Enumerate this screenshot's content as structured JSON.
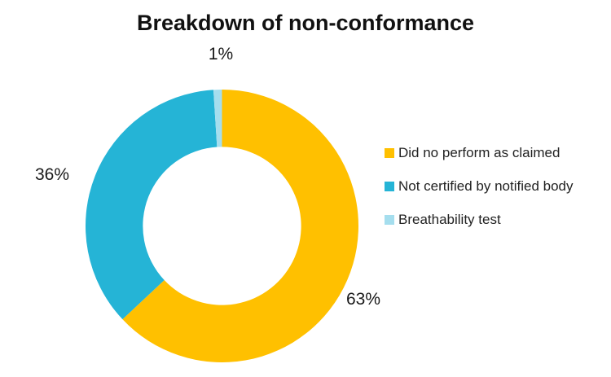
{
  "title": "Breakdown of non-conformance",
  "chart_data": {
    "type": "pie",
    "subtype": "donut",
    "title": "Breakdown of non-conformance",
    "hole_radius_ratio": 0.58,
    "start_angle_deg": 0,
    "direction": "clockwise",
    "legend_position": "right",
    "background_color": "#ffffff",
    "title_color": "#111111",
    "label_color": "#1a1a1a",
    "legend_text_color": "#222222",
    "categories": [
      "Did no perform as claimed",
      "Not certified by notified body",
      "Breathability test"
    ],
    "values": [
      63,
      36,
      1
    ],
    "slices": [
      {
        "name": "Did no perform as claimed",
        "value_pct": 63,
        "data_label": "63%",
        "color": "#FFC000"
      },
      {
        "name": "Not certified by notified body",
        "value_pct": 36,
        "data_label": "36%",
        "color": "#25B4D6"
      },
      {
        "name": "Breathability test",
        "value_pct": 1,
        "data_label": "1%",
        "color": "#A5DEEE"
      }
    ]
  }
}
